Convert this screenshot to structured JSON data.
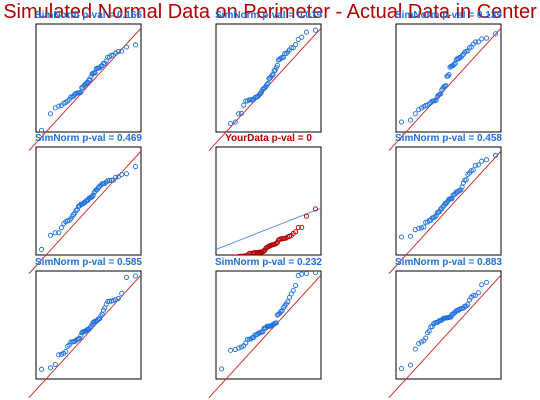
{
  "header": {
    "title": "Simulated Normal Data on Perimeter - Actual Data in Center"
  },
  "colors": {
    "title": "#b00000",
    "sim_label": "#1f6fe0",
    "sim_points": "#1f6fe0",
    "sim_line": "#d02020",
    "actual_label": "#b00000",
    "actual_points": "#b00000",
    "actual_line": "#4f8fe0"
  },
  "chart_data": [
    {
      "type": "scatter",
      "panel": "top-left",
      "title": "SimNorm p-val =  0.166",
      "kind": "sim",
      "n": 50,
      "seed": 11,
      "xlim": [
        -2.6,
        2.6
      ],
      "ylim": [
        -2.6,
        2.6
      ]
    },
    {
      "type": "scatter",
      "panel": "top-center",
      "title": "SimNorm p-val =  0.019",
      "kind": "sim",
      "n": 50,
      "seed": 23,
      "xlim": [
        -2.6,
        2.6
      ],
      "ylim": [
        -2.6,
        2.6
      ]
    },
    {
      "type": "scatter",
      "panel": "top-right",
      "title": "SimNorm p-val =  0.139",
      "kind": "sim",
      "n": 50,
      "seed": 37,
      "xlim": [
        -2.6,
        2.6
      ],
      "ylim": [
        -2.6,
        2.6
      ]
    },
    {
      "type": "scatter",
      "panel": "middle-left",
      "title": "SimNorm p-val =  0.469",
      "kind": "sim",
      "n": 50,
      "seed": 41,
      "xlim": [
        -2.6,
        2.6
      ],
      "ylim": [
        -2.6,
        2.6
      ]
    },
    {
      "type": "scatter",
      "panel": "center",
      "title": "YourData p-val =  0",
      "kind": "actual",
      "n": 50,
      "seed": 53,
      "xlim": [
        -2.6,
        2.6
      ],
      "ylim": [
        -0.6,
        6.2
      ]
    },
    {
      "type": "scatter",
      "panel": "middle-right",
      "title": "SimNorm p-val =  0.458",
      "kind": "sim",
      "n": 50,
      "seed": 67,
      "xlim": [
        -2.6,
        2.6
      ],
      "ylim": [
        -2.6,
        2.6
      ]
    },
    {
      "type": "scatter",
      "panel": "bottom-left",
      "title": "SimNorm p-val =  0.585",
      "kind": "sim",
      "n": 50,
      "seed": 71,
      "xlim": [
        -2.6,
        2.6
      ],
      "ylim": [
        -2.6,
        2.6
      ]
    },
    {
      "type": "scatter",
      "panel": "bottom-center",
      "title": "SimNorm p-val =  0.232",
      "kind": "sim",
      "n": 50,
      "seed": 83,
      "xlim": [
        -2.6,
        2.6
      ],
      "ylim": [
        -2.6,
        2.6
      ]
    },
    {
      "type": "scatter",
      "panel": "bottom-right",
      "title": "SimNorm p-val =  0.883",
      "kind": "sim",
      "n": 50,
      "seed": 97,
      "xlim": [
        -2.6,
        2.6
      ],
      "ylim": [
        -2.6,
        2.6
      ]
    }
  ]
}
